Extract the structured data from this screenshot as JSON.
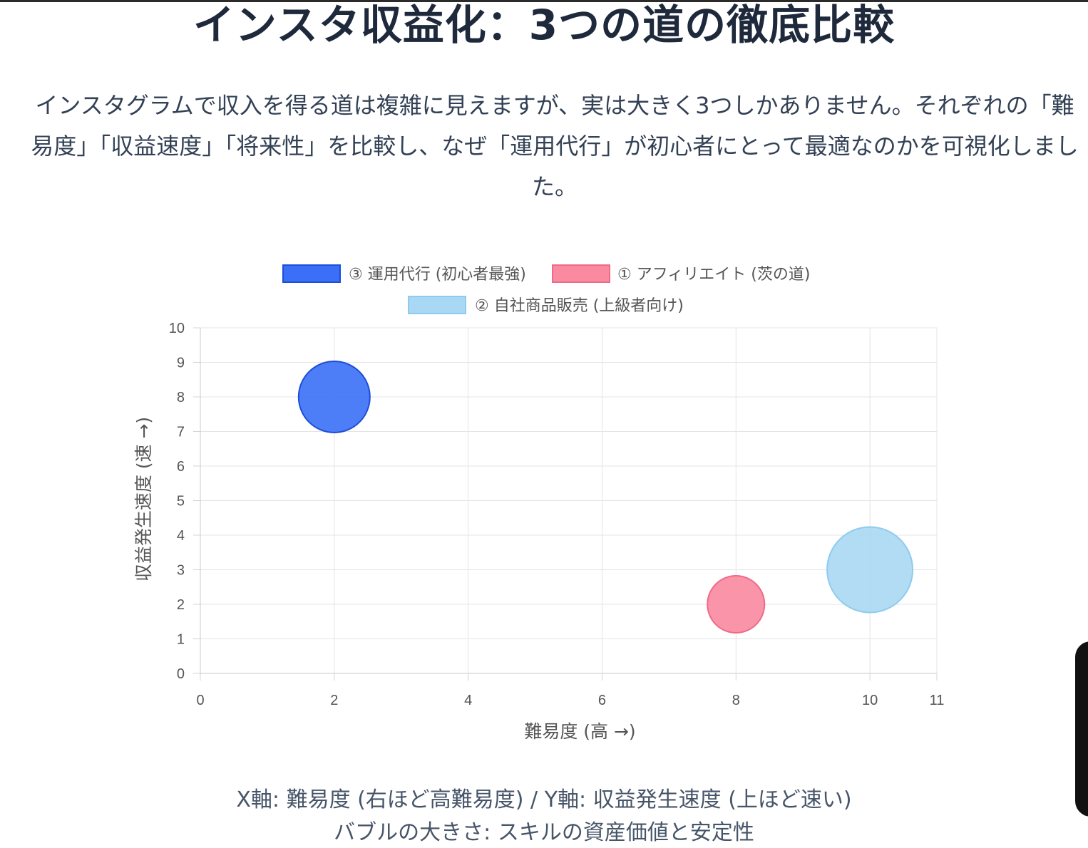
{
  "header": {
    "title": "インスタ収益化：3つの道の徹底比較"
  },
  "intro": {
    "text": "インスタグラムで収入を得る道は複雑に見えますが、実は大きく3つしかありません。それぞれの「難易度」「収益速度」「将来性」を比較し、なぜ「運用代行」が初心者にとって最適なのかを可視化しました。"
  },
  "chart_data": {
    "type": "scatter",
    "variant": "bubble",
    "xlabel": "難易度 (高 →)",
    "ylabel": "収益発生速度 (速 →)",
    "xlim": [
      0,
      11
    ],
    "ylim": [
      0,
      10
    ],
    "xticks": [
      "0",
      "2",
      "4",
      "6",
      "8",
      "10",
      "11"
    ],
    "yticks": [
      "0",
      "1",
      "2",
      "3",
      "4",
      "5",
      "6",
      "7",
      "8",
      "9",
      "10"
    ],
    "grid": true,
    "legend_position": "top",
    "series": [
      {
        "name": "③ 運用代行 (初心者最強)",
        "x": 2,
        "y": 8,
        "r": 25,
        "color": "#3b6ff7",
        "border": "#1d4ed8"
      },
      {
        "name": "① アフィリエイト (茨の道)",
        "x": 8,
        "y": 2,
        "r": 20,
        "color": "#f98aa0",
        "border": "#ef6a86"
      },
      {
        "name": "② 自社商品販売 (上級者向け)",
        "x": 10,
        "y": 3,
        "r": 30,
        "color": "#a8d8f3",
        "border": "#8ecbee"
      }
    ]
  },
  "footnote": {
    "line1": "X軸: 難易度 (右ほど高難易度) / Y軸: 収益発生速度 (上ほど速い)",
    "line2": "バブルの大きさ: スキルの資産価値と安定性"
  }
}
